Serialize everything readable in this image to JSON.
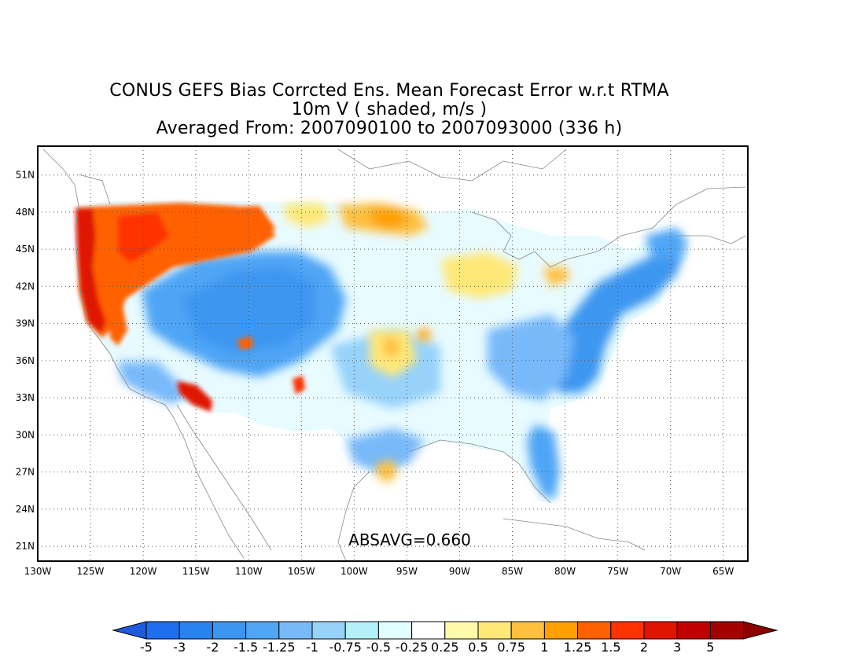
{
  "title": {
    "line1": "CONUS GEFS Bias Corrcted Ens. Mean Forecast Error w.r.t RTMA",
    "line2": "10m V ( shaded, m/s )",
    "line3": "Averaged From: 2007090100 to 2007093000 (336 h)"
  },
  "map": {
    "lon_labels": [
      "130W",
      "125W",
      "120W",
      "115W",
      "110W",
      "105W",
      "100W",
      "95W",
      "90W",
      "85W",
      "80W",
      "75W",
      "70W",
      "65W"
    ],
    "lat_labels": [
      "51N",
      "48N",
      "45N",
      "42N",
      "39N",
      "36N",
      "33N",
      "30N",
      "27N",
      "24N",
      "21N"
    ],
    "absavg": "ABSAVG=0.660",
    "grid": "dotted"
  },
  "colorbar": {
    "labels": [
      "-5",
      "-3",
      "-2",
      "-1.5",
      "-1.25",
      "-1",
      "-0.75",
      "-0.5",
      "-0.25",
      "0.25",
      "0.5",
      "0.75",
      "1",
      "1.25",
      "1.5",
      "2",
      "3",
      "5"
    ],
    "colors": [
      "#1e6ef0",
      "#2882f0",
      "#3c96f0",
      "#50a5f5",
      "#78b9fa",
      "#96d2fa",
      "#b4f0fa",
      "#e1ffff",
      "#ffffff",
      "#fffaaa",
      "#ffe878",
      "#ffc03c",
      "#ffa000",
      "#ff6000",
      "#ff3200",
      "#e11400",
      "#c00000",
      "#a50000"
    ],
    "end_low": "#1e5adc",
    "end_high": "#8c0000"
  }
}
